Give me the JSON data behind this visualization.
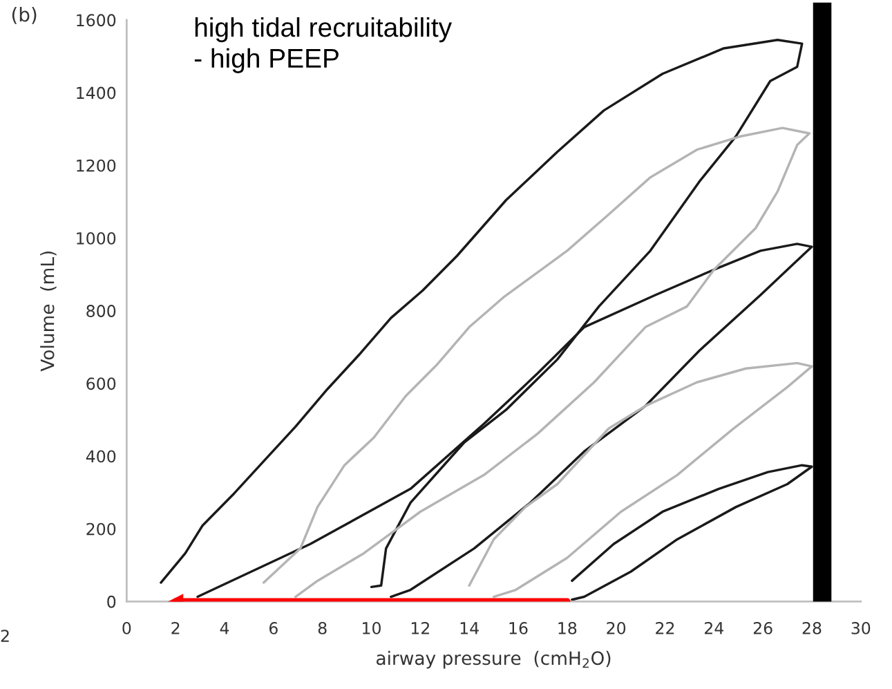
{
  "chart_data": {
    "type": "line",
    "xlabel": "airway pressure  (cmH$_{2}$O)",
    "ylabel": "Volume  (mL)",
    "annotations": [
      "(b)",
      "high tidal recruitability\n- high PEEP",
      "2"
    ],
    "xlim": [
      0,
      30
    ],
    "xticks": [
      0,
      2,
      4,
      6,
      8,
      10,
      12,
      14,
      16,
      18,
      20,
      22,
      24,
      26,
      28,
      30
    ],
    "ylim": [
      0,
      1600
    ],
    "yticks": [
      0,
      200,
      400,
      600,
      800,
      1000,
      1200,
      1400,
      1600
    ],
    "grid": false,
    "legend": false,
    "marker": "none",
    "line_style": "solid",
    "bands": [
      {
        "axis": "x",
        "from": 28.05,
        "to": 28.8,
        "color": "#000000"
      }
    ],
    "series": [
      {
        "color": "#1a1a1a",
        "x": [
          1.4,
          2.4,
          3.1,
          4.4,
          5.6,
          6.9,
          8.2,
          9.5,
          10.8,
          12.1,
          13.5,
          15.5,
          17.6,
          19.5,
          21.9,
          24.4,
          26.6,
          27.6,
          27.4,
          26.3,
          24.9,
          23.4,
          21.4,
          19.3,
          17.6,
          15.5,
          13.8,
          11.6,
          10.6,
          10.4,
          10.0
        ],
        "values": [
          52,
          133,
          209,
          298,
          386,
          481,
          584,
          679,
          780,
          856,
          951,
          1104,
          1237,
          1351,
          1452,
          1522,
          1545,
          1535,
          1471,
          1432,
          1280,
          1155,
          965,
          812,
          666,
          527,
          438,
          272,
          146,
          44,
          40
        ]
      },
      {
        "color": "#1a1a1a",
        "x": [
          2.9,
          7.5,
          11.6,
          14.6,
          16.8,
          18.7,
          21.6,
          24.0,
          25.9,
          27.4,
          28.0,
          27.0,
          25.9,
          23.4,
          21.2,
          18.7,
          16.5,
          14.2,
          11.6,
          10.8
        ],
        "values": [
          13,
          158,
          310,
          489,
          628,
          755,
          843,
          913,
          965,
          984,
          976,
          913,
          843,
          690,
          538,
          413,
          272,
          146,
          32,
          13
        ]
      },
      {
        "color": "#b4b4b4",
        "x": [
          5.6,
          7.1,
          7.8,
          8.9,
          10.1,
          11.4,
          12.7,
          14.0,
          15.4,
          18.0,
          19.7,
          21.4,
          23.3,
          25.1,
          26.8,
          27.9,
          27.4,
          26.6,
          25.7,
          24.0,
          22.9,
          21.2,
          19.1,
          16.8,
          14.6,
          12.0,
          9.7,
          7.8,
          6.9
        ],
        "values": [
          52,
          146,
          260,
          375,
          451,
          565,
          653,
          755,
          837,
          965,
          1065,
          1167,
          1243,
          1280,
          1303,
          1288,
          1256,
          1128,
          1027,
          913,
          812,
          755,
          603,
          462,
          348,
          247,
          133,
          57,
          13
        ]
      },
      {
        "color": "#b4b4b4",
        "x": [
          14.0,
          15.0,
          16.3,
          17.6,
          19.7,
          21.2,
          23.3,
          25.3,
          27.4,
          28.0,
          27.0,
          24.8,
          22.5,
          20.2,
          18.0,
          15.9,
          15.0
        ],
        "values": [
          44,
          171,
          260,
          323,
          476,
          538,
          603,
          641,
          656,
          647,
          590,
          476,
          348,
          247,
          120,
          32,
          13
        ]
      },
      {
        "color": "#1a1a1a",
        "x": [
          18.2,
          19.9,
          21.9,
          24.2,
          26.2,
          27.6,
          28.0,
          27.0,
          24.9,
          22.5,
          20.6,
          18.7,
          18.2
        ],
        "values": [
          57,
          158,
          247,
          310,
          356,
          375,
          371,
          323,
          260,
          171,
          82,
          13,
          5
        ]
      },
      {
        "color": "#ff0000",
        "marker": "triangle",
        "x": [
          18,
          2
        ],
        "values": [
          0,
          0
        ]
      }
    ]
  }
}
